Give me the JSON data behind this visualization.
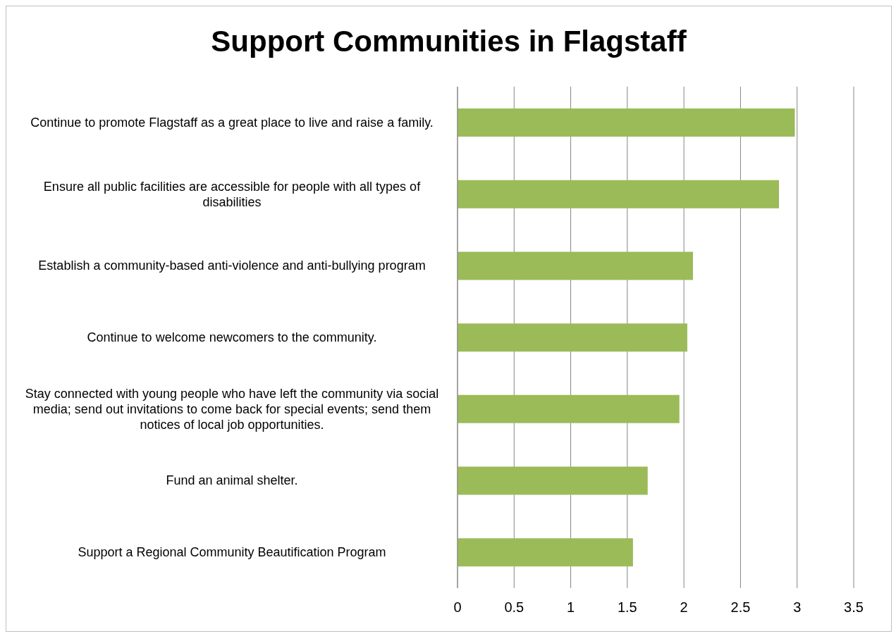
{
  "chart_data": {
    "type": "bar",
    "orientation": "horizontal",
    "title": "Support Communities in Flagstaff",
    "categories": [
      "Continue to promote Flagstaff as a great place to live and raise a family.",
      "Ensure all public facilities are accessible for people with all types of disabilities",
      "Establish a community-based anti-violence and anti-bullying program",
      "Continue to welcome newcomers to the community.",
      "Stay connected with young people who have left the community via social media; send out invitations to come back for special events; send them notices of local job opportunities.",
      "Fund an animal shelter.",
      "Support a Regional Community Beautification Program"
    ],
    "values": [
      2.98,
      2.84,
      2.08,
      2.03,
      1.96,
      1.68,
      1.55
    ],
    "color": "#9bbb59",
    "xlim": [
      0,
      3.5
    ],
    "xticks": [
      0,
      0.5,
      1,
      1.5,
      2,
      2.5,
      3,
      3.5
    ],
    "grid": "x",
    "legend": false
  }
}
